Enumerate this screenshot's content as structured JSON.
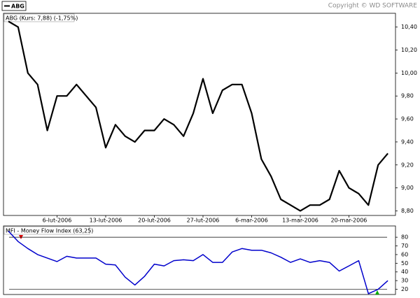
{
  "legend": "ABG",
  "copyright": "Copyright © WD SOFTWARE",
  "chart_data": [
    {
      "type": "line",
      "title": "ABG (Kurs: 7,88) (-1,75%)",
      "categories": [
        null,
        null,
        null,
        null,
        null,
        "6-lut-2006",
        null,
        null,
        null,
        null,
        "13-lut-2006",
        null,
        null,
        null,
        null,
        "20-lut-2006",
        null,
        null,
        null,
        null,
        "27-lut-2006",
        null,
        null,
        null,
        null,
        "6-mar-2006",
        null,
        null,
        null,
        null,
        "13-mar-2006",
        null,
        null,
        null,
        null,
        "20-mar-2006",
        null,
        null,
        null,
        null
      ],
      "series": [
        {
          "name": "ABG",
          "color": "#000000",
          "values": [
            10.45,
            10.4,
            10.0,
            9.9,
            9.5,
            9.8,
            9.8,
            9.9,
            9.8,
            9.7,
            9.35,
            9.55,
            9.45,
            9.4,
            9.5,
            9.5,
            9.6,
            9.55,
            9.45,
            9.65,
            9.95,
            9.65,
            9.85,
            9.9,
            9.9,
            9.65,
            9.25,
            9.1,
            8.9,
            8.85,
            8.8,
            8.85,
            8.85,
            8.9,
            9.15,
            9.0,
            8.95,
            8.85,
            9.2,
            9.3
          ]
        }
      ],
      "ylim": [
        8.76,
        10.52
      ],
      "yticks": [
        {
          "value": 8.8,
          "label": "8,80"
        },
        {
          "value": 9.0,
          "label": "9,00"
        },
        {
          "value": 9.2,
          "label": "9,20"
        },
        {
          "value": 9.4,
          "label": "9,40"
        },
        {
          "value": 9.6,
          "label": "9,60"
        },
        {
          "value": 9.8,
          "label": "9,80"
        },
        {
          "value": 10.0,
          "label": "10,00"
        },
        {
          "value": 10.2,
          "label": "10,20"
        },
        {
          "value": 10.4,
          "label": "10,40"
        }
      ]
    },
    {
      "type": "line",
      "title": "MFI - Money Flow Index (63,25)",
      "series": [
        {
          "name": "MFI",
          "color": "#0000cc",
          "values": [
            87,
            75,
            67,
            60,
            56,
            52,
            58,
            56,
            56,
            56,
            49,
            48,
            34,
            25,
            35,
            49,
            47,
            53,
            54,
            53,
            60,
            51,
            51,
            63,
            67,
            65,
            65,
            62,
            57,
            51,
            55,
            51,
            53,
            51,
            41,
            47,
            53,
            15,
            20,
            30
          ]
        }
      ],
      "ylim": [
        14,
        93
      ],
      "yticks": [
        20,
        30,
        40,
        50,
        60,
        70,
        80
      ],
      "levels": [
        80,
        20
      ]
    }
  ]
}
